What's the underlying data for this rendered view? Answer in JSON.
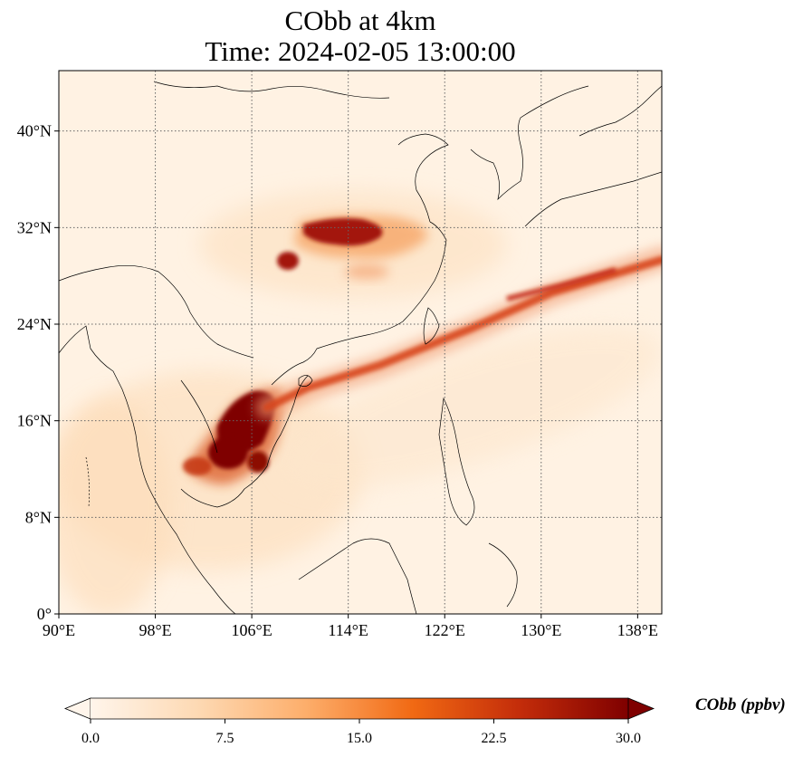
{
  "title_line1": "CObb at 4km",
  "title_line2": "Time: 2024-02-05 13:00:00",
  "map": {
    "lon_range": [
      90,
      140
    ],
    "lat_range": [
      0,
      45
    ],
    "lat_ticks": [
      {
        "value": 0,
        "label": "0°"
      },
      {
        "value": 8,
        "label": "8°N"
      },
      {
        "value": 16,
        "label": "16°N"
      },
      {
        "value": 24,
        "label": "24°N"
      },
      {
        "value": 32,
        "label": "32°N"
      },
      {
        "value": 40,
        "label": "40°N"
      }
    ],
    "lon_ticks": [
      {
        "value": 90,
        "label": "90°E"
      },
      {
        "value": 98,
        "label": "98°E"
      },
      {
        "value": 106,
        "label": "106°E"
      },
      {
        "value": 114,
        "label": "114°E"
      },
      {
        "value": 122,
        "label": "122°E"
      },
      {
        "value": 130,
        "label": "130°E"
      },
      {
        "value": 138,
        "label": "138°E"
      }
    ],
    "gridlines": true
  },
  "colorbar": {
    "label": "CObb (ppbv)",
    "range": [
      0,
      30
    ],
    "ticks": [
      {
        "value": 0,
        "label": "0.0"
      },
      {
        "value": 7.5,
        "label": "7.5"
      },
      {
        "value": 15,
        "label": "15.0"
      },
      {
        "value": 22.5,
        "label": "22.5"
      },
      {
        "value": 30,
        "label": "30.0"
      }
    ],
    "colormap": [
      "#fff5eb",
      "#fdd9b3",
      "#fdae6b",
      "#f16913",
      "#c32c0a",
      "#7f0000"
    ],
    "extend": "both"
  }
}
